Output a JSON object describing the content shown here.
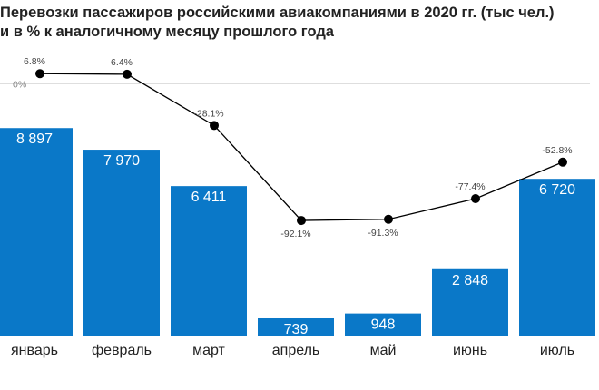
{
  "title_line1": "Перевозки пассажиров российскими авиакомпаниями в 2020 гг. (тыс чел.)",
  "title_line2": "и в % к аналогичному месяцу прошлого года",
  "chart_data": {
    "type": "bar",
    "title": "Перевозки пассажиров российскими авиакомпаниями в 2020 гг. (тыс чел.) и в % к аналогичному месяцу прошлого года",
    "categories": [
      "январь",
      "февраль",
      "март",
      "апрель",
      "май",
      "июнь",
      "июль"
    ],
    "series": [
      {
        "type": "bar",
        "values": [
          8897,
          7970,
          6411,
          739,
          948,
          2848,
          6720
        ],
        "labels": [
          "8 897",
          "7 970",
          "6 411",
          "739",
          "948",
          "2 848",
          "6 720"
        ],
        "color": "#0a78c8"
      },
      {
        "type": "line",
        "values": [
          6.8,
          6.4,
          -28.1,
          -92.1,
          -91.3,
          -77.4,
          -52.8
        ],
        "labels": [
          "6.8%",
          "6.4%",
          "-28.1%",
          "-92.1%",
          "-91.3%",
          "-77.4%",
          "-52.8%"
        ],
        "color": "#000000"
      }
    ],
    "bar_ylim": [
      0,
      10500
    ],
    "line_ylim": [
      -100,
      10
    ],
    "line_reference": {
      "value": 0,
      "label": "0%"
    },
    "grid": false,
    "legend": "none",
    "xlabel": "",
    "ylabel": ""
  }
}
